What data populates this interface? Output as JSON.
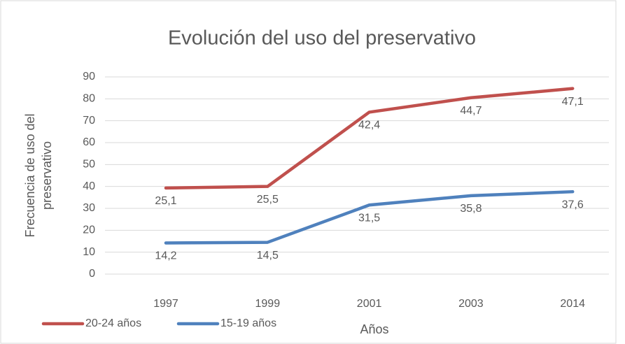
{
  "chart_data": {
    "type": "line",
    "stacked": true,
    "title": "Evolución del uso del preservativo",
    "xlabel": "Años",
    "ylabel": [
      "Frecuencia de uso del",
      "preservativo"
    ],
    "categories": [
      "1997",
      "1999",
      "2001",
      "2003",
      "2014"
    ],
    "series": [
      {
        "name": "20-24 años",
        "color": "#c0504d",
        "values": [
          25.1,
          25.5,
          42.4,
          44.7,
          47.1
        ],
        "value_labels": [
          "25,1",
          "25,5",
          "42,4",
          "44,7",
          "47,1"
        ]
      },
      {
        "name": "15-19 años",
        "color": "#4f81bd",
        "values": [
          14.2,
          14.5,
          31.5,
          35.8,
          37.6
        ],
        "value_labels": [
          "14,2",
          "14,5",
          "31,5",
          "35,8",
          "37,6"
        ]
      }
    ],
    "ylim": [
      0,
      90
    ],
    "yticks": [
      0,
      10,
      20,
      30,
      40,
      50,
      60,
      70,
      80,
      90
    ],
    "grid": true,
    "legend": "bottom"
  }
}
